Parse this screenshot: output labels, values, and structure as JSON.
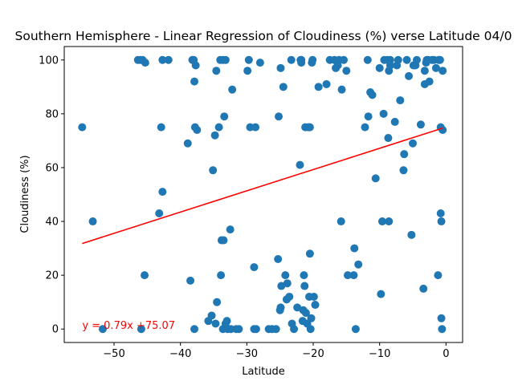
{
  "chart_data": {
    "type": "scatter",
    "title": "Southern Hemisphere - Linear Regression of Cloudiness (%) verse Latitude 04/0",
    "xlabel": "Latitude",
    "ylabel": "Cloudiness (%)",
    "xlim": [
      -57.5,
      2.5
    ],
    "ylim": [
      -5,
      105
    ],
    "xticks": [
      -50,
      -40,
      -30,
      -20,
      -10,
      0
    ],
    "yticks": [
      0,
      20,
      40,
      60,
      80,
      100
    ],
    "grid": false,
    "point_color": "#1f77b4",
    "line_color": "#ff0000",
    "regression": {
      "slope": 0.79,
      "intercept": 75.07,
      "x_range": [
        -54.8,
        -0.5
      ]
    },
    "annotation": {
      "text": "y = 0.79x +75.07",
      "x": -54.8,
      "y": 0,
      "color": "#ff0000"
    },
    "points": [
      [
        -54.8,
        75
      ],
      [
        -53.2,
        40
      ],
      [
        -51.7,
        0
      ],
      [
        -46.4,
        100
      ],
      [
        -46.0,
        100
      ],
      [
        -45.7,
        100
      ],
      [
        -45.3,
        99
      ],
      [
        -45.4,
        20
      ],
      [
        -45.9,
        0
      ],
      [
        -43.2,
        43
      ],
      [
        -42.9,
        75
      ],
      [
        -42.7,
        51
      ],
      [
        -42.7,
        100
      ],
      [
        -41.8,
        100
      ],
      [
        -38.9,
        69
      ],
      [
        -38.5,
        18
      ],
      [
        -38.2,
        100
      ],
      [
        -38.0,
        100
      ],
      [
        -37.9,
        92
      ],
      [
        -37.7,
        98
      ],
      [
        -37.8,
        75
      ],
      [
        -37.5,
        74
      ],
      [
        -37.9,
        0
      ],
      [
        -35.8,
        3
      ],
      [
        -35.3,
        5
      ],
      [
        -35.1,
        59
      ],
      [
        -34.8,
        72
      ],
      [
        -34.6,
        96
      ],
      [
        -34.7,
        2
      ],
      [
        -34.5,
        10
      ],
      [
        -34.2,
        75
      ],
      [
        -34.0,
        100
      ],
      [
        -33.9,
        20
      ],
      [
        -33.8,
        33
      ],
      [
        -33.6,
        100
      ],
      [
        -33.5,
        33
      ],
      [
        -33.4,
        79
      ],
      [
        -33.2,
        100
      ],
      [
        -33.6,
        0
      ],
      [
        -33.2,
        2
      ],
      [
        -33.0,
        3
      ],
      [
        -32.9,
        0
      ],
      [
        -32.5,
        37
      ],
      [
        -32.4,
        0
      ],
      [
        -32.2,
        89
      ],
      [
        -31.6,
        0
      ],
      [
        -31.2,
        0
      ],
      [
        -29.9,
        96
      ],
      [
        -29.7,
        100
      ],
      [
        -29.5,
        75
      ],
      [
        -28.9,
        23
      ],
      [
        -28.7,
        75
      ],
      [
        -28.9,
        0
      ],
      [
        -28.6,
        0
      ],
      [
        -28.0,
        99
      ],
      [
        -26.7,
        0
      ],
      [
        -26.2,
        0
      ],
      [
        -25.6,
        0
      ],
      [
        -25.3,
        26
      ],
      [
        -25.2,
        79
      ],
      [
        -25.0,
        7
      ],
      [
        -24.9,
        8
      ],
      [
        -24.9,
        97
      ],
      [
        -24.8,
        16
      ],
      [
        -24.5,
        90
      ],
      [
        -24.2,
        20
      ],
      [
        -24.0,
        11
      ],
      [
        -23.9,
        17
      ],
      [
        -23.6,
        12
      ],
      [
        -23.3,
        100
      ],
      [
        -23.2,
        2
      ],
      [
        -22.9,
        0
      ],
      [
        -22.4,
        8
      ],
      [
        -22.0,
        61
      ],
      [
        -21.9,
        100
      ],
      [
        -21.8,
        100
      ],
      [
        -21.8,
        99
      ],
      [
        -21.6,
        3
      ],
      [
        -21.5,
        7
      ],
      [
        -21.4,
        20
      ],
      [
        -21.3,
        16
      ],
      [
        -21.2,
        75
      ],
      [
        -21.1,
        6
      ],
      [
        -20.9,
        2
      ],
      [
        -20.7,
        75
      ],
      [
        -20.6,
        12
      ],
      [
        -20.5,
        75
      ],
      [
        -20.5,
        28
      ],
      [
        -20.4,
        0
      ],
      [
        -20.3,
        4
      ],
      [
        -20.2,
        99
      ],
      [
        -20.1,
        100
      ],
      [
        -19.9,
        12
      ],
      [
        -19.7,
        9
      ],
      [
        -19.2,
        90
      ],
      [
        -18.0,
        91
      ],
      [
        -17.5,
        100
      ],
      [
        -16.8,
        100
      ],
      [
        -16.6,
        97
      ],
      [
        -16.3,
        98
      ],
      [
        -16.1,
        100
      ],
      [
        -15.7,
        89
      ],
      [
        -15.8,
        40
      ],
      [
        -15.4,
        100
      ],
      [
        -15.0,
        96
      ],
      [
        -14.8,
        20
      ],
      [
        -13.9,
        20
      ],
      [
        -13.8,
        30
      ],
      [
        -13.6,
        0
      ],
      [
        -13.2,
        24
      ],
      [
        -12.2,
        75
      ],
      [
        -11.8,
        100
      ],
      [
        -11.7,
        79
      ],
      [
        -11.4,
        88
      ],
      [
        -11.1,
        87
      ],
      [
        -10.6,
        56
      ],
      [
        -10.0,
        97
      ],
      [
        -9.8,
        13
      ],
      [
        -9.6,
        40
      ],
      [
        -9.4,
        80
      ],
      [
        -9.3,
        100
      ],
      [
        -8.8,
        100
      ],
      [
        -8.7,
        71
      ],
      [
        -8.6,
        96
      ],
      [
        -8.6,
        40
      ],
      [
        -8.4,
        100
      ],
      [
        -8.4,
        98
      ],
      [
        -7.7,
        77
      ],
      [
        -7.4,
        98
      ],
      [
        -7.2,
        100
      ],
      [
        -6.9,
        85
      ],
      [
        -6.4,
        59
      ],
      [
        -6.3,
        65
      ],
      [
        -5.9,
        100
      ],
      [
        -5.6,
        94
      ],
      [
        -5.2,
        35
      ],
      [
        -5.0,
        69
      ],
      [
        -4.9,
        98
      ],
      [
        -4.6,
        98
      ],
      [
        -4.4,
        100
      ],
      [
        -3.8,
        76
      ],
      [
        -3.4,
        15
      ],
      [
        -3.2,
        96
      ],
      [
        -3.2,
        91
      ],
      [
        -3.0,
        99
      ],
      [
        -2.9,
        100
      ],
      [
        -2.7,
        100
      ],
      [
        -2.5,
        92
      ],
      [
        -2.1,
        100
      ],
      [
        -1.8,
        100
      ],
      [
        -1.5,
        97
      ],
      [
        -1.2,
        20
      ],
      [
        -1.1,
        100
      ],
      [
        -0.9,
        100
      ],
      [
        -0.8,
        75
      ],
      [
        -0.8,
        43
      ],
      [
        -0.7,
        40
      ],
      [
        -0.7,
        4
      ],
      [
        -0.6,
        0
      ],
      [
        -0.5,
        74
      ],
      [
        -0.5,
        96
      ]
    ]
  }
}
